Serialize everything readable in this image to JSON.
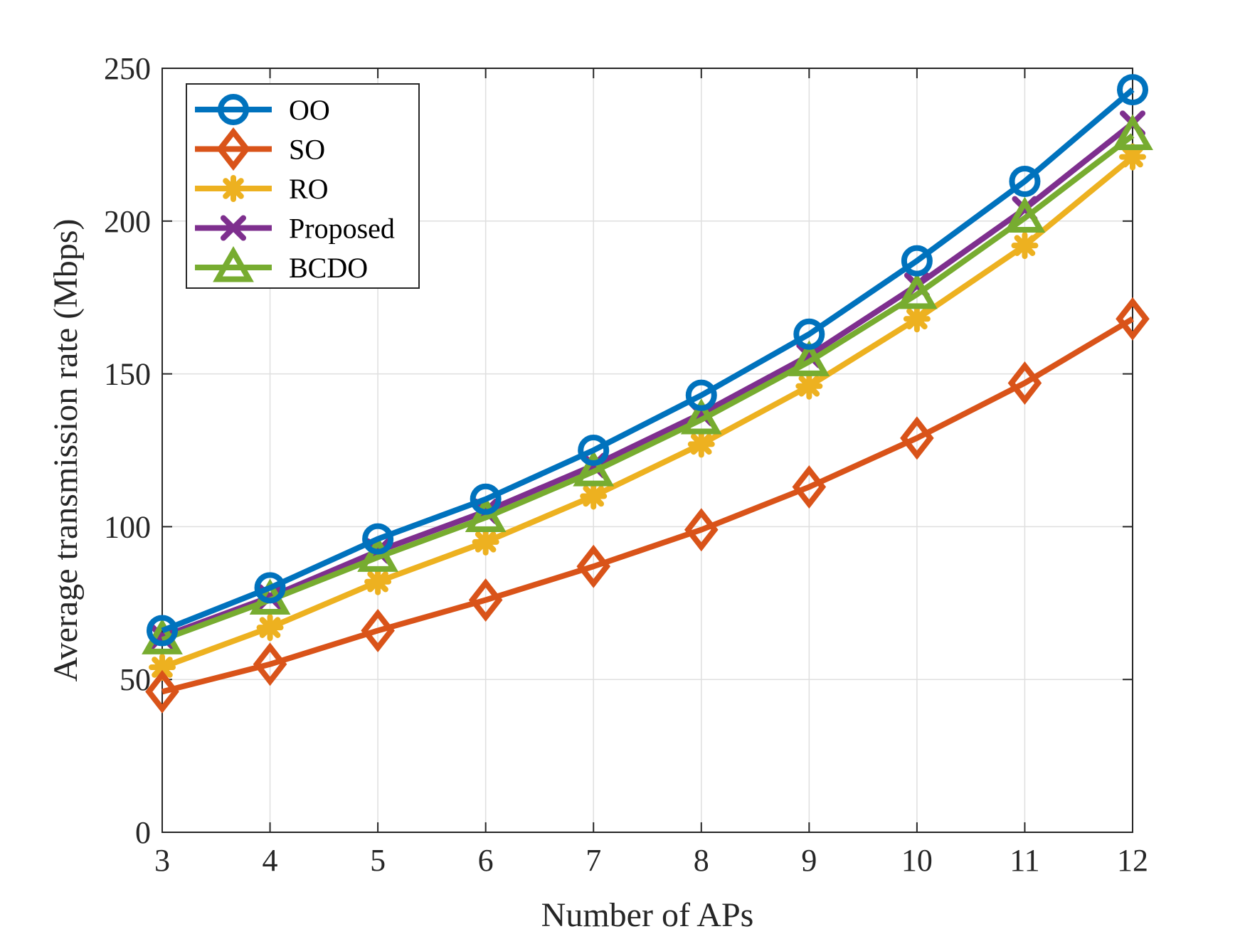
{
  "chart_data": {
    "type": "line",
    "title": "",
    "xlabel": "Number of APs",
    "ylabel": "Average transmission rate (Mbps)",
    "x": [
      3,
      4,
      5,
      6,
      7,
      8,
      9,
      10,
      11,
      12
    ],
    "xlim": [
      3,
      12
    ],
    "ylim": [
      0,
      250
    ],
    "xticks": [
      "3",
      "4",
      "5",
      "6",
      "7",
      "8",
      "9",
      "10",
      "11",
      "12"
    ],
    "yticks": [
      "0",
      "50",
      "100",
      "150",
      "200",
      "250"
    ],
    "grid": true,
    "legend_position": "top-left",
    "series": [
      {
        "name": "OO",
        "marker": "circle",
        "color": "#0072BD",
        "values": [
          66,
          80,
          96,
          109,
          125,
          143,
          163,
          187,
          213,
          243
        ]
      },
      {
        "name": "SO",
        "marker": "diamond",
        "color": "#D95319",
        "values": [
          46,
          55,
          66,
          76,
          87,
          99,
          113,
          129,
          147,
          168
        ]
      },
      {
        "name": "RO",
        "marker": "asterisk",
        "color": "#EDB120",
        "values": [
          54,
          67,
          82,
          95,
          110,
          127,
          146,
          168,
          192,
          221
        ]
      },
      {
        "name": "Proposed",
        "marker": "x",
        "color": "#7E2F8E",
        "values": [
          64,
          77,
          92,
          105,
          120,
          137,
          156,
          179,
          204,
          232
        ]
      },
      {
        "name": "BCDO",
        "marker": "triangle",
        "color": "#77AC30",
        "values": [
          63,
          76,
          90,
          103,
          118,
          135,
          154,
          176,
          201,
          228
        ]
      }
    ]
  }
}
